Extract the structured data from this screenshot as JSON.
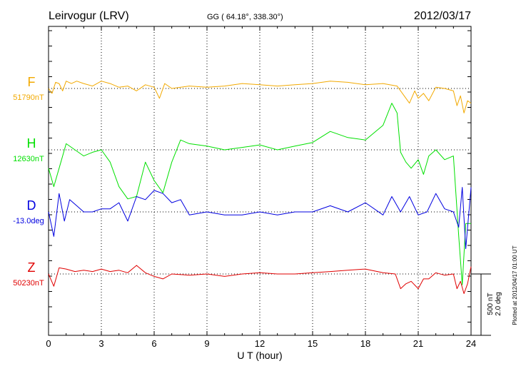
{
  "header": {
    "station": "Leirvogur (LRV)",
    "coords": "GG ( 64.18°, 338.30°)",
    "date": "2012/03/17"
  },
  "footer": {
    "plotted_note": "Plotted at 2012/04/17 01:00 UT"
  },
  "colors": {
    "F": "#f2a900",
    "H": "#00e000",
    "D": "#0000e0",
    "Z": "#e00000",
    "axis": "#000000"
  },
  "chart_data": {
    "type": "line",
    "title": "Leirvogur (LRV)",
    "xlabel": "U T (hour)",
    "ylabel": "",
    "xlim": [
      0,
      24
    ],
    "x_ticks": [
      0,
      3,
      6,
      9,
      12,
      15,
      18,
      21,
      24
    ],
    "x_tick_labels": [
      "0",
      "3",
      "6",
      "9",
      "12",
      "15",
      "18",
      "21",
      "24"
    ],
    "grid": true,
    "scale": {
      "nT_label": "500 nT",
      "deg_label": "2.0 deg"
    },
    "series": [
      {
        "name": "F",
        "baseline_label": "51790nT",
        "x": [
          0,
          0.2,
          0.4,
          0.6,
          0.8,
          1.0,
          1.3,
          1.6,
          2.0,
          2.5,
          3.0,
          3.5,
          4.0,
          4.5,
          5.0,
          5.5,
          6.0,
          6.3,
          6.6,
          7.0,
          8.0,
          9.0,
          10.0,
          11.0,
          12.0,
          13.0,
          14.0,
          15.0,
          16.0,
          17.0,
          18.0,
          19.0,
          19.8,
          20.2,
          20.5,
          20.8,
          21.0,
          21.3,
          21.6,
          22.0,
          22.5,
          23.0,
          23.2,
          23.4,
          23.6,
          23.8,
          24.0
        ],
        "values": [
          0,
          -40,
          50,
          40,
          -20,
          60,
          40,
          60,
          40,
          20,
          60,
          40,
          10,
          20,
          -20,
          30,
          10,
          -80,
          40,
          0,
          20,
          10,
          20,
          40,
          30,
          20,
          30,
          40,
          60,
          50,
          30,
          40,
          20,
          -60,
          -120,
          -20,
          -80,
          -40,
          -100,
          10,
          0,
          -20,
          -140,
          -60,
          -200,
          -100,
          -120
        ]
      },
      {
        "name": "H",
        "baseline_label": "12630nT",
        "x": [
          0,
          0.3,
          0.7,
          1.0,
          1.5,
          2.0,
          2.5,
          3.0,
          3.5,
          4.0,
          4.5,
          5.0,
          5.5,
          6.0,
          6.5,
          7.0,
          7.5,
          8.0,
          9.0,
          10.0,
          11.0,
          12.0,
          13.0,
          14.0,
          15.0,
          16.0,
          17.0,
          18.0,
          19.0,
          19.5,
          19.8,
          20.0,
          20.3,
          20.6,
          21.0,
          21.3,
          21.6,
          22.0,
          22.5,
          23.0,
          23.3,
          23.5,
          23.7,
          24.0
        ],
        "values": [
          -150,
          -300,
          -100,
          50,
          0,
          -50,
          -20,
          0,
          -100,
          -300,
          -400,
          -380,
          -100,
          -250,
          -350,
          -100,
          80,
          50,
          30,
          0,
          20,
          40,
          0,
          30,
          60,
          150,
          100,
          80,
          200,
          380,
          300,
          -20,
          -100,
          -150,
          -80,
          -200,
          -50,
          0,
          -80,
          -50,
          -700,
          -1100,
          -600,
          -600
        ]
      },
      {
        "name": "D",
        "baseline_label": "-13.0deg",
        "x": [
          0,
          0.3,
          0.6,
          0.9,
          1.2,
          1.6,
          2.0,
          2.5,
          3.0,
          3.5,
          4.0,
          4.5,
          5.0,
          5.5,
          6.0,
          6.5,
          7.0,
          7.5,
          8.0,
          9.0,
          10.0,
          11.0,
          12.0,
          13.0,
          14.0,
          15.0,
          16.0,
          17.0,
          18.0,
          19.0,
          19.5,
          20.0,
          20.5,
          21.0,
          21.5,
          22.0,
          22.5,
          23.0,
          23.3,
          23.5,
          23.7,
          24.0
        ],
        "values": [
          0,
          -0.8,
          0.6,
          -0.3,
          0.4,
          0.2,
          0.0,
          0.0,
          0.1,
          0.1,
          0.3,
          -0.3,
          0.5,
          0.4,
          0.7,
          0.6,
          0.3,
          0.4,
          -0.1,
          0.0,
          -0.1,
          -0.1,
          0.0,
          -0.1,
          0.0,
          0.0,
          0.2,
          0.0,
          0.3,
          -0.1,
          0.5,
          0.0,
          0.5,
          -0.1,
          0.0,
          0.6,
          0.1,
          0.0,
          -0.5,
          0.8,
          -1.2,
          0.8
        ]
      },
      {
        "name": "Z",
        "baseline_label": "50230nT",
        "x": [
          0,
          0.3,
          0.6,
          1.0,
          1.5,
          2.0,
          2.5,
          3.0,
          3.5,
          4.0,
          4.5,
          5.0,
          5.5,
          6.0,
          6.5,
          7.0,
          8.0,
          9.0,
          10.0,
          11.0,
          12.0,
          13.0,
          14.0,
          15.0,
          16.0,
          17.0,
          18.0,
          19.0,
          19.7,
          20.0,
          20.3,
          20.6,
          21.0,
          21.3,
          21.6,
          22.0,
          22.5,
          23.0,
          23.2,
          23.4,
          23.6,
          23.8,
          24.0
        ],
        "values": [
          0,
          -100,
          50,
          40,
          20,
          30,
          20,
          40,
          20,
          30,
          10,
          70,
          10,
          -20,
          -40,
          0,
          -10,
          0,
          -20,
          0,
          10,
          0,
          0,
          10,
          20,
          30,
          40,
          10,
          0,
          -120,
          -80,
          -60,
          -120,
          -40,
          -40,
          10,
          -10,
          0,
          -120,
          -60,
          -160,
          -80,
          60
        ]
      }
    ]
  }
}
